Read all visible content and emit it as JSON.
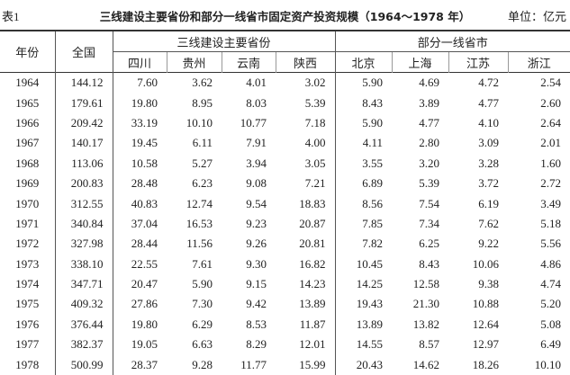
{
  "header": {
    "label": "表1",
    "title": "三线建设主要省份和部分一线省市固定资产投资规模（1964～1978 年）",
    "unit": "单位：亿元"
  },
  "table": {
    "year_col": "年份",
    "total_col": "全国",
    "groups": [
      {
        "name": "三线建设主要省份",
        "columns": [
          "四川",
          "贵州",
          "云南",
          "陕西"
        ]
      },
      {
        "name": "部分一线省市",
        "columns": [
          "北京",
          "上海",
          "江苏",
          "浙江"
        ]
      }
    ],
    "rows": [
      [
        "1964",
        "144.12",
        "7.60",
        "3.62",
        "4.01",
        "3.02",
        "5.90",
        "4.69",
        "4.72",
        "2.54"
      ],
      [
        "1965",
        "179.61",
        "19.80",
        "8.95",
        "8.03",
        "5.39",
        "8.43",
        "3.89",
        "4.77",
        "2.60"
      ],
      [
        "1966",
        "209.42",
        "33.19",
        "10.10",
        "10.77",
        "7.18",
        "5.90",
        "4.77",
        "4.10",
        "2.64"
      ],
      [
        "1967",
        "140.17",
        "19.45",
        "6.11",
        "7.91",
        "4.00",
        "4.11",
        "2.80",
        "3.09",
        "2.01"
      ],
      [
        "1968",
        "113.06",
        "10.58",
        "5.27",
        "3.94",
        "3.05",
        "3.55",
        "3.20",
        "3.28",
        "1.60"
      ],
      [
        "1969",
        "200.83",
        "28.48",
        "6.23",
        "9.08",
        "7.21",
        "6.89",
        "5.39",
        "3.72",
        "2.72"
      ],
      [
        "1970",
        "312.55",
        "40.83",
        "12.74",
        "9.54",
        "18.83",
        "8.56",
        "7.54",
        "6.19",
        "3.49"
      ],
      [
        "1971",
        "340.84",
        "37.04",
        "16.53",
        "9.23",
        "20.87",
        "7.85",
        "7.34",
        "7.62",
        "5.18"
      ],
      [
        "1972",
        "327.98",
        "28.44",
        "11.56",
        "9.26",
        "20.81",
        "7.82",
        "6.25",
        "9.22",
        "5.56"
      ],
      [
        "1973",
        "338.10",
        "22.55",
        "7.61",
        "9.30",
        "16.82",
        "10.45",
        "8.43",
        "10.06",
        "4.86"
      ],
      [
        "1974",
        "347.71",
        "20.47",
        "5.90",
        "9.15",
        "14.23",
        "14.25",
        "12.58",
        "9.38",
        "4.74"
      ],
      [
        "1975",
        "409.32",
        "27.86",
        "7.30",
        "9.42",
        "13.89",
        "19.43",
        "21.30",
        "10.88",
        "5.20"
      ],
      [
        "1976",
        "376.44",
        "19.80",
        "6.29",
        "8.53",
        "11.87",
        "13.89",
        "13.82",
        "12.64",
        "5.08"
      ],
      [
        "1977",
        "382.37",
        "19.05",
        "6.63",
        "8.29",
        "12.01",
        "14.55",
        "8.57",
        "12.97",
        "6.49"
      ],
      [
        "1978",
        "500.99",
        "28.37",
        "9.28",
        "11.77",
        "15.99",
        "20.43",
        "14.62",
        "18.26",
        "10.10"
      ]
    ]
  }
}
